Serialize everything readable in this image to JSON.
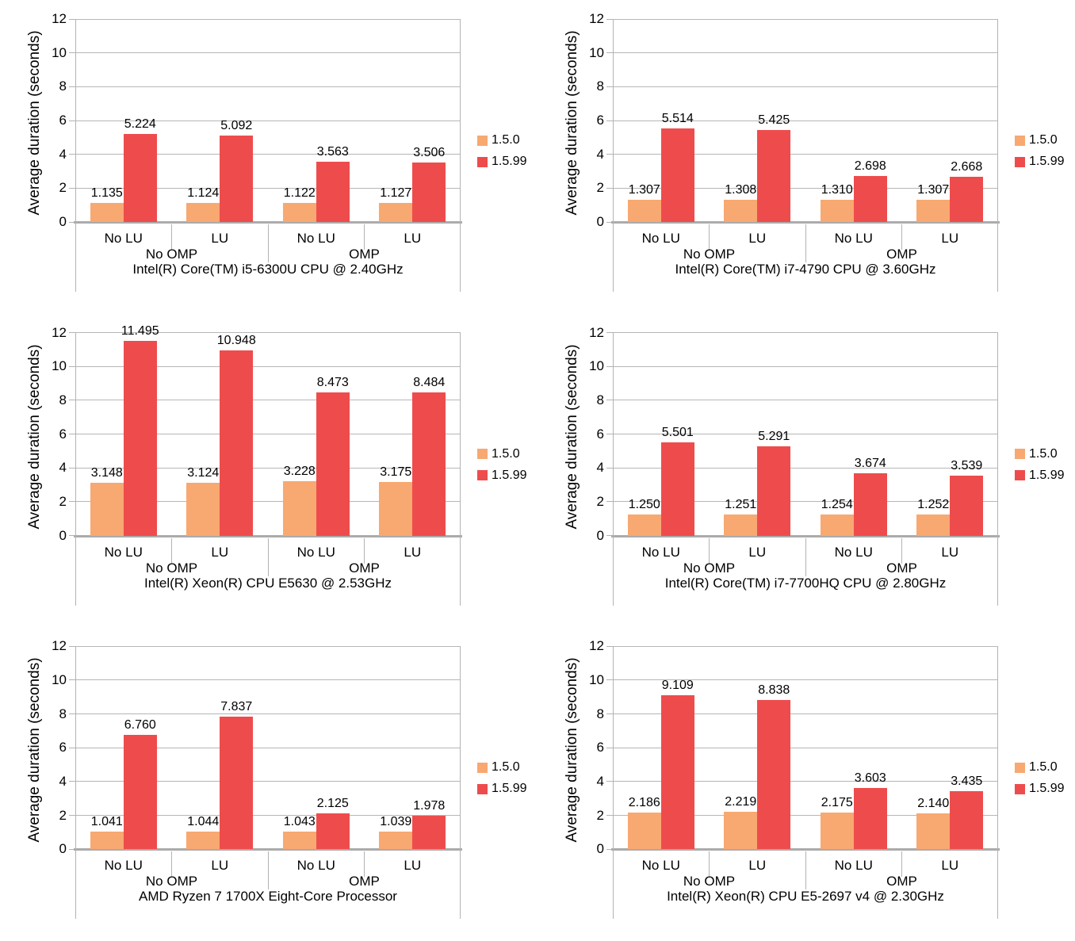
{
  "page": {
    "background": "#ffffff"
  },
  "colors": {
    "series_1_5_0": "#F8A871",
    "series_1_5_99": "#EE4C4C",
    "gridline": "#b6b6b6",
    "axis_line": "#ababab",
    "frame_line": "#b3b3b3",
    "text": "#000000"
  },
  "legend": {
    "position": "right",
    "items": [
      {
        "label": "1.5.0",
        "color": "#F8A871"
      },
      {
        "label": "1.5.99",
        "color": "#EE4C4C"
      }
    ]
  },
  "axis": {
    "ylabel": "Average duration (seconds)",
    "ylim": [
      0,
      12
    ],
    "yticks": [
      0,
      2,
      4,
      6,
      8,
      10,
      12
    ],
    "grid": true,
    "category_labels": [
      "No LU",
      "LU",
      "No LU",
      "LU"
    ],
    "group_labels": [
      "No OMP",
      "OMP"
    ]
  },
  "chart_data": [
    {
      "type": "bar",
      "title": "Intel(R) Core(TM) i5-6300U CPU @ 2.40GHz",
      "ylabel": "Average duration (seconds)",
      "ylim": [
        0,
        12
      ],
      "categories": [
        "No OMP / No LU",
        "No OMP / LU",
        "OMP / No LU",
        "OMP / LU"
      ],
      "series": [
        {
          "name": "1.5.0",
          "values": [
            1.135,
            1.124,
            1.122,
            1.127
          ],
          "value_labels": [
            "1.135",
            "1.124",
            "1.122",
            "1.127"
          ]
        },
        {
          "name": "1.5.99",
          "values": [
            5.224,
            5.092,
            3.563,
            3.506
          ],
          "value_labels": [
            "5.224",
            "5.092",
            "3.563",
            "3.506"
          ]
        }
      ]
    },
    {
      "type": "bar",
      "title": "Intel(R) Core(TM) i7-4790 CPU @ 3.60GHz",
      "ylabel": "Average duration (seconds)",
      "ylim": [
        0,
        12
      ],
      "categories": [
        "No OMP / No LU",
        "No OMP / LU",
        "OMP / No LU",
        "OMP / LU"
      ],
      "series": [
        {
          "name": "1.5.0",
          "values": [
            1.307,
            1.308,
            1.31,
            1.307
          ],
          "value_labels": [
            "1.307",
            "1.308",
            "1.310",
            "1.307"
          ]
        },
        {
          "name": "1.5.99",
          "values": [
            5.514,
            5.425,
            2.698,
            2.668
          ],
          "value_labels": [
            "5.514",
            "5.425",
            "2.698",
            "2.668"
          ]
        }
      ]
    },
    {
      "type": "bar",
      "title": "Intel(R) Xeon(R) CPU E5630 @ 2.53GHz",
      "ylabel": "Average duration (seconds)",
      "ylim": [
        0,
        12
      ],
      "categories": [
        "No OMP / No LU",
        "No OMP / LU",
        "OMP / No LU",
        "OMP / LU"
      ],
      "series": [
        {
          "name": "1.5.0",
          "values": [
            3.148,
            3.124,
            3.228,
            3.175
          ],
          "value_labels": [
            "3.148",
            "3.124",
            "3.228",
            "3.175"
          ]
        },
        {
          "name": "1.5.99",
          "values": [
            11.495,
            10.948,
            8.473,
            8.484
          ],
          "value_labels": [
            "11.495",
            "10.948",
            "8.473",
            "8.484"
          ]
        }
      ]
    },
    {
      "type": "bar",
      "title": "Intel(R) Core(TM) i7-7700HQ CPU @ 2.80GHz",
      "ylabel": "Average duration (seconds)",
      "ylim": [
        0,
        12
      ],
      "categories": [
        "No OMP / No LU",
        "No OMP / LU",
        "OMP / No LU",
        "OMP / LU"
      ],
      "series": [
        {
          "name": "1.5.0",
          "values": [
            1.25,
            1.251,
            1.254,
            1.252
          ],
          "value_labels": [
            "1.250",
            "1.251",
            "1.254",
            "1.252"
          ]
        },
        {
          "name": "1.5.99",
          "values": [
            5.501,
            5.291,
            3.674,
            3.539
          ],
          "value_labels": [
            "5.501",
            "5.291",
            "3.674",
            "3.539"
          ]
        }
      ]
    },
    {
      "type": "bar",
      "title": "AMD Ryzen 7 1700X Eight-Core Processor",
      "ylabel": "Average duration (seconds)",
      "ylim": [
        0,
        12
      ],
      "categories": [
        "No OMP / No LU",
        "No OMP / LU",
        "OMP / No LU",
        "OMP / LU"
      ],
      "series": [
        {
          "name": "1.5.0",
          "values": [
            1.041,
            1.044,
            1.043,
            1.039
          ],
          "value_labels": [
            "1.041",
            "1.044",
            "1.043",
            "1.039"
          ]
        },
        {
          "name": "1.5.99",
          "values": [
            6.76,
            7.837,
            2.125,
            1.978
          ],
          "value_labels": [
            "6.760",
            "7.837",
            "2.125",
            "1.978"
          ]
        }
      ]
    },
    {
      "type": "bar",
      "title": "Intel(R) Xeon(R) CPU E5-2697 v4 @ 2.30GHz",
      "ylabel": "Average duration (seconds)",
      "ylim": [
        0,
        12
      ],
      "categories": [
        "No OMP / No LU",
        "No OMP / LU",
        "OMP / No LU",
        "OMP / LU"
      ],
      "series": [
        {
          "name": "1.5.0",
          "values": [
            2.186,
            2.219,
            2.175,
            2.14
          ],
          "value_labels": [
            "2.186",
            "2.219",
            "2.175",
            "2.140"
          ]
        },
        {
          "name": "1.5.99",
          "values": [
            9.109,
            8.838,
            3.603,
            3.435
          ],
          "value_labels": [
            "9.109",
            "8.838",
            "3.603",
            "3.435"
          ]
        }
      ]
    }
  ]
}
